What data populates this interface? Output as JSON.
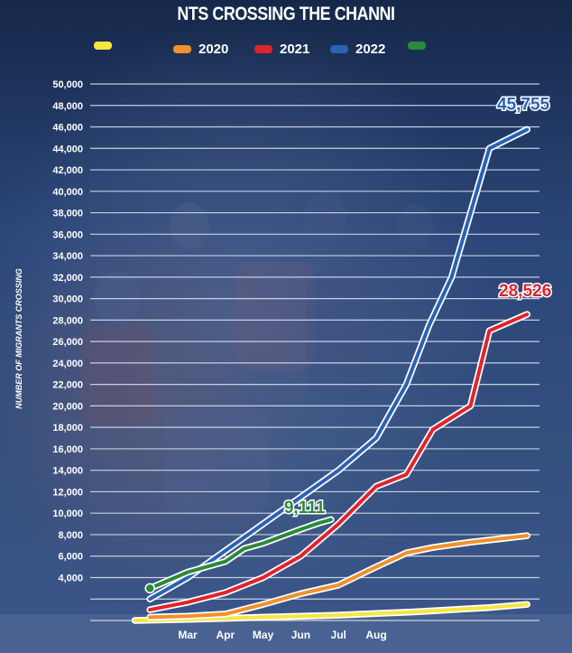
{
  "chart_data": {
    "type": "line",
    "title": "NTS CROSSING THE CHANNI",
    "ylabel": "NUMBER OF MIGRANTS CROSSING",
    "xlabel": "",
    "ylim": [
      0,
      50000
    ],
    "y_ticks": [
      4000,
      6000,
      8000,
      10000,
      12000,
      14000,
      16000,
      18000,
      20000,
      22000,
      24000,
      26000,
      28000,
      30000,
      32000,
      34000,
      36000,
      38000,
      40000,
      42000,
      44000,
      46000,
      48000,
      50000
    ],
    "y_tick_labels": [
      "4,000",
      "6,000",
      "8,000",
      "10,000",
      "12,000",
      "14,000",
      "16,000",
      "18,000",
      "20,000",
      "22,000",
      "24,000",
      "26,000",
      "28,000",
      "30,000",
      "32,000",
      "34,000",
      "36,000",
      "38,000",
      "40,000",
      "42,000",
      "44,000",
      "46,000",
      "48,000",
      "50,000"
    ],
    "x_ticks": [
      {
        "label": "Mar",
        "month": 3.0
      },
      {
        "label": "Apr",
        "month": 4.0
      },
      {
        "label": "May",
        "month": 5.0
      },
      {
        "label": "Jun",
        "month": 6.0
      },
      {
        "label": "Jul",
        "month": 7.0
      },
      {
        "label": "Aug",
        "month": 8.0
      }
    ],
    "grid": true,
    "legend_position": "top",
    "series": [
      {
        "name": "",
        "color": "#f5e642",
        "x": [
          1.6,
          3.0,
          4.0,
          5.0,
          6.0,
          7.0,
          8.0,
          9.0,
          10.0,
          11.0,
          12.0
        ],
        "y": [
          0,
          100,
          200,
          300,
          400,
          500,
          650,
          800,
          1000,
          1200,
          1500
        ]
      },
      {
        "name": "2020",
        "color": "#f0912c",
        "x": [
          2.0,
          3.0,
          4.0,
          5.0,
          6.0,
          7.0,
          8.0,
          8.8,
          9.5,
          10.5,
          11.5,
          12.0
        ],
        "y": [
          300,
          400,
          600,
          1500,
          2500,
          3300,
          5000,
          6300,
          6800,
          7300,
          7700,
          7900
        ]
      },
      {
        "name": "2021",
        "color": "#e0242c",
        "x": [
          2.0,
          3.0,
          4.0,
          5.0,
          6.0,
          7.0,
          8.0,
          8.8,
          9.5,
          10.5,
          11.0,
          12.0
        ],
        "y": [
          1000,
          1700,
          2600,
          4000,
          6000,
          9000,
          12500,
          13600,
          17800,
          20000,
          27000,
          28526
        ]
      },
      {
        "name": "2022",
        "color": "#2a62b6",
        "x": [
          2.0,
          3.0,
          4.0,
          5.0,
          6.0,
          7.0,
          8.0,
          8.8,
          9.4,
          10.0,
          11.0,
          12.0
        ],
        "y": [
          2000,
          4000,
          6500,
          9000,
          11500,
          14000,
          17000,
          22000,
          27500,
          32000,
          44000,
          45755
        ]
      },
      {
        "name": "",
        "color": "#2a8a3a",
        "x": [
          2.0,
          3.0,
          4.0,
          4.5,
          5.0,
          6.0,
          6.5,
          6.8
        ],
        "y": [
          3000,
          4500,
          5500,
          6700,
          7200,
          8500,
          9111,
          9400
        ]
      }
    ],
    "annotations": [
      {
        "text": "45,755",
        "color": "#2a62b6",
        "x": 11.9,
        "y": 47600
      },
      {
        "text": "28,526",
        "color": "#e0242c",
        "x": 11.95,
        "y": 30200
      },
      {
        "text": "9,111",
        "color": "#2a8a3a",
        "x": 6.1,
        "y": 10000
      }
    ]
  }
}
